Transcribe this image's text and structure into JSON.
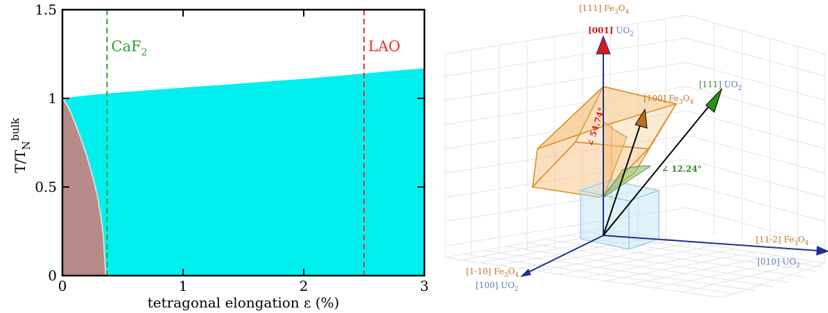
{
  "chart_data": [
    {
      "type": "area",
      "xlabel": "tetragonal elongation ε (%)",
      "ylabel_main": "T/T",
      "ylabel_sub": "N",
      "ylabel_sup": "bulk",
      "xlim": [
        0,
        3
      ],
      "ylim": [
        0,
        1.5
      ],
      "x_ticks": [
        0,
        1,
        2,
        3
      ],
      "y_ticks": [
        0,
        0.5,
        1,
        1.5
      ],
      "x_tick_labels": [
        "0",
        "1",
        "2",
        "3"
      ],
      "y_tick_labels": [
        "0",
        "0.5",
        "1",
        "1.5"
      ],
      "series": [
        {
          "color": "#00f0f0",
          "upper": {
            "x": [
              0,
              0.25,
              0.5,
              1,
              1.5,
              2,
              2.5,
              3
            ],
            "y": [
              1.0,
              1.02,
              1.035,
              1.06,
              1.085,
              1.11,
              1.14,
              1.17
            ]
          }
        },
        {
          "color": "#b68a88",
          "boundary": {
            "x": [
              0,
              0.05,
              0.1,
              0.15,
              0.2,
              0.25,
              0.29,
              0.32,
              0.34,
              0.35,
              0.36
            ],
            "y": [
              1.0,
              0.95,
              0.87,
              0.78,
              0.68,
              0.56,
              0.45,
              0.33,
              0.22,
              0.1,
              0
            ]
          }
        }
      ],
      "vlines": [
        {
          "x": 0.37,
          "main": "CaF",
          "sub": "2",
          "color": "#2ca02c"
        },
        {
          "x": 2.5,
          "main": "LAO",
          "sub": "",
          "color": "#e83030"
        }
      ]
    },
    {
      "type": "diagram-3d",
      "labels": {
        "top_fe": "[111] Fe",
        "top_uo_bracket": "[001]",
        "uo2_text": " UO",
        "s3": "3",
        "s4": "4",
        "s2": "2",
        "o": "O",
        "green_bracket": "[111]",
        "brown_bracket": "[100] Fe",
        "right_fe": "[11-2] Fe",
        "right_uo_bracket": "[010]",
        "left_fe": "[1-10] Fe",
        "left_uo_bracket": "[100]",
        "angle1": "∠ 54.74°",
        "angle2": "∠ 12.24°"
      },
      "colors": {
        "fe3o4": "#c8761c",
        "uo2": "#5b7fbf",
        "red": "#d01c1c",
        "green": "#2e8b1e",
        "navy": "#1f2f8f"
      }
    }
  ]
}
